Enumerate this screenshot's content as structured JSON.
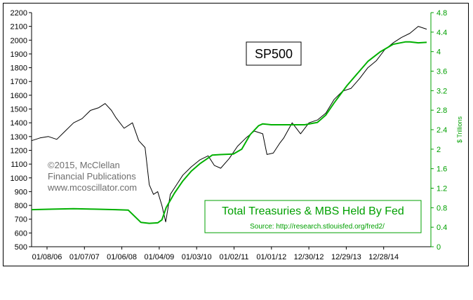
{
  "chart_data": {
    "type": "line",
    "title": "SP500",
    "legend_box": {
      "title": "Total Treasuries & MBS Held By Fed",
      "source": "Source: http://research.stlouisfed.org/fred2/"
    },
    "copyright": [
      "©2015, McClellan",
      "Financial Publications",
      "www.mcoscillator.com"
    ],
    "xlabel": "",
    "ylabel_left": "",
    "ylabel_right": "$ Trillions",
    "x_ticks": [
      "01/08/06",
      "01/07/07",
      "01/06/08",
      "01/04/09",
      "01/03/10",
      "01/02/11",
      "01/01/12",
      "12/30/12",
      "12/29/13",
      "12/28/14"
    ],
    "y_left_ticks": [
      "500",
      "600",
      "700",
      "800",
      "900",
      "1000",
      "1100",
      "1200",
      "1300",
      "1400",
      "1500",
      "1600",
      "1700",
      "1800",
      "1900",
      "2000",
      "2100",
      "2200"
    ],
    "y_right_ticks": [
      "0",
      "0.4",
      "0.8",
      "1.2",
      "1.6",
      "2",
      "2.4",
      "2.8",
      "3.2",
      "3.6",
      "4",
      "4.4",
      "4.8"
    ],
    "ylim_left": [
      500,
      2200
    ],
    "ylim_right": [
      0,
      4.8
    ],
    "x_range": [
      2006.0,
      2015.5
    ],
    "grid": false,
    "series": [
      {
        "name": "SP500",
        "axis": "left",
        "color": "#000000",
        "x": [
          2006.0,
          2006.2,
          2006.4,
          2006.6,
          2006.8,
          2007.0,
          2007.2,
          2007.4,
          2007.6,
          2007.75,
          2007.9,
          2008.0,
          2008.2,
          2008.4,
          2008.55,
          2008.7,
          2008.8,
          2008.9,
          2009.0,
          2009.1,
          2009.19,
          2009.3,
          2009.45,
          2009.6,
          2009.8,
          2010.0,
          2010.2,
          2010.35,
          2010.5,
          2010.7,
          2010.9,
          2011.1,
          2011.3,
          2011.5,
          2011.6,
          2011.75,
          2011.9,
          2012.0,
          2012.2,
          2012.4,
          2012.6,
          2012.8,
          2013.0,
          2013.2,
          2013.4,
          2013.6,
          2013.8,
          2014.0,
          2014.2,
          2014.4,
          2014.6,
          2014.8,
          2015.0,
          2015.2,
          2015.4
        ],
        "values": [
          1270,
          1290,
          1300,
          1280,
          1340,
          1400,
          1430,
          1490,
          1510,
          1540,
          1490,
          1440,
          1360,
          1400,
          1270,
          1220,
          950,
          880,
          900,
          800,
          680,
          880,
          950,
          1020,
          1080,
          1130,
          1160,
          1090,
          1070,
          1140,
          1230,
          1290,
          1340,
          1320,
          1170,
          1180,
          1250,
          1290,
          1400,
          1320,
          1400,
          1420,
          1470,
          1570,
          1630,
          1650,
          1720,
          1800,
          1850,
          1930,
          1980,
          2020,
          2050,
          2100,
          2080
        ]
      },
      {
        "name": "Total Treasuries & MBS Held By Fed",
        "axis": "right",
        "color": "#00b000",
        "x": [
          2006.0,
          2006.5,
          2007.0,
          2007.5,
          2008.0,
          2008.3,
          2008.6,
          2008.8,
          2009.0,
          2009.1,
          2009.2,
          2009.4,
          2009.6,
          2009.8,
          2010.0,
          2010.2,
          2010.3,
          2010.5,
          2010.8,
          2011.0,
          2011.2,
          2011.4,
          2011.5,
          2011.7,
          2012.0,
          2012.5,
          2012.8,
          2013.0,
          2013.2,
          2013.5,
          2013.8,
          2014.0,
          2014.3,
          2014.6,
          2014.9,
          2015.0,
          2015.2,
          2015.4
        ],
        "values": [
          0.76,
          0.77,
          0.78,
          0.77,
          0.76,
          0.75,
          0.5,
          0.48,
          0.49,
          0.55,
          0.8,
          1.1,
          1.35,
          1.55,
          1.7,
          1.82,
          1.88,
          1.89,
          1.9,
          2.0,
          2.3,
          2.48,
          2.52,
          2.5,
          2.5,
          2.5,
          2.55,
          2.7,
          2.95,
          3.3,
          3.6,
          3.8,
          4.0,
          4.15,
          4.2,
          4.2,
          4.18,
          4.19
        ]
      }
    ]
  }
}
